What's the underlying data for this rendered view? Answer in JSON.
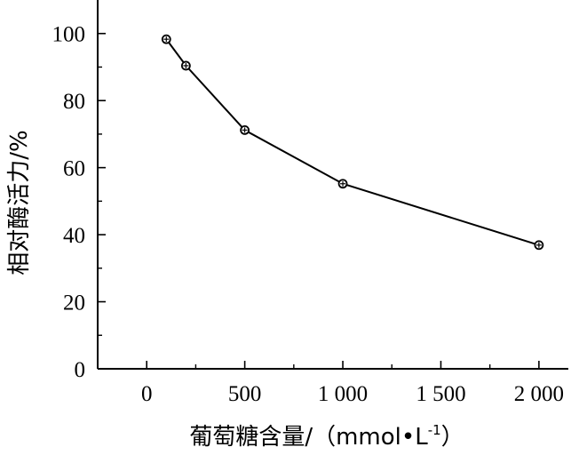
{
  "chart_data": {
    "type": "line",
    "title": "",
    "xlabel": "葡萄糖含量/（mmol•L",
    "xlabel_sup": "-1",
    "xlabel_close": "）",
    "ylabel": "相对酶活力/%",
    "xlim": [
      -250,
      2150
    ],
    "ylim": [
      0,
      110
    ],
    "x_ticks": [
      0,
      500,
      1000,
      1500,
      2000
    ],
    "x_tick_labels": [
      "0",
      "500",
      "1 000",
      "1 500",
      "2 000"
    ],
    "y_ticks": [
      0,
      20,
      40,
      60,
      80,
      100
    ],
    "y_tick_labels": [
      "0",
      "20",
      "40",
      "60",
      "80",
      "100"
    ],
    "grid": false,
    "legend": "none",
    "series": [
      {
        "x": [
          100,
          200,
          500,
          1000,
          2000
        ],
        "y": [
          98.3,
          90.4,
          71.2,
          55.2,
          36.9
        ]
      }
    ],
    "line_color": "#000000"
  }
}
